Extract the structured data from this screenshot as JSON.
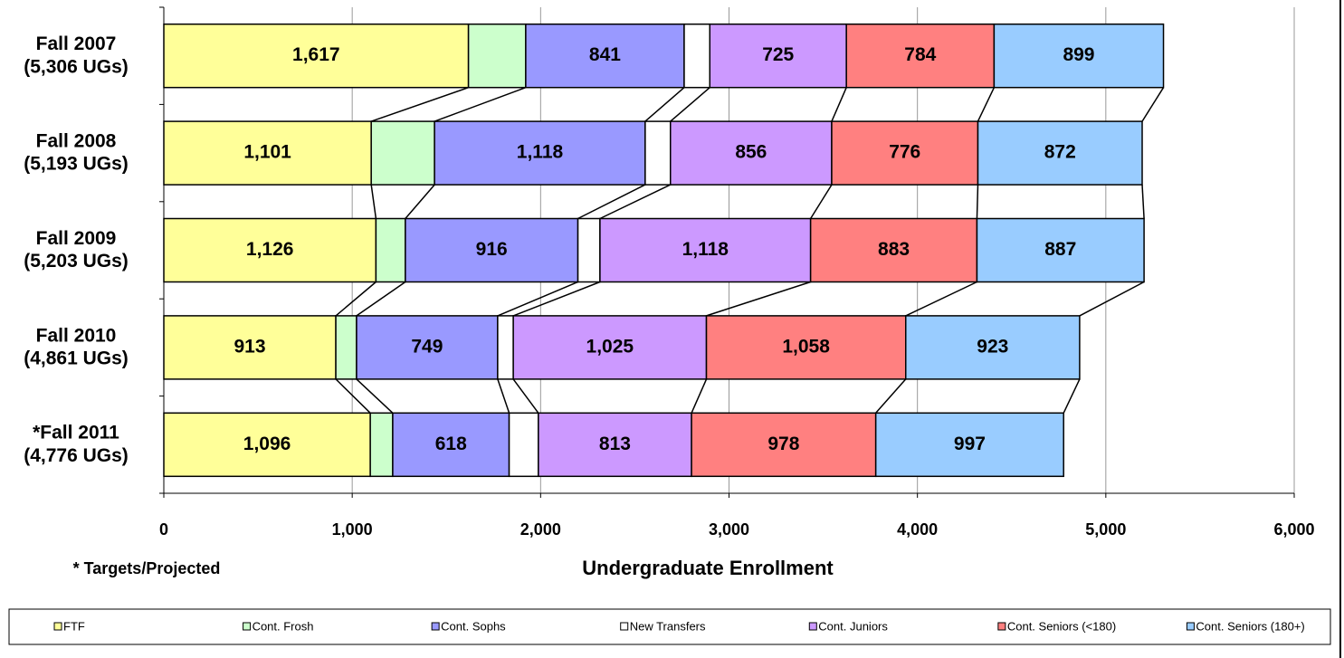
{
  "chart_data": {
    "type": "stacked_bar_horizontal",
    "categories": [
      [
        "Fall 2007",
        "(5,306 UGs)"
      ],
      [
        "Fall 2008",
        "(5,193 UGs)"
      ],
      [
        "Fall 2009",
        "(5,203 UGs)"
      ],
      [
        "Fall 2010",
        "(4,861 UGs)"
      ],
      [
        "*Fall 2011",
        "(4,776 UGs)"
      ]
    ],
    "series": [
      {
        "name": "FTF",
        "color": "#ffff99",
        "values": [
          1617,
          1101,
          1126,
          913,
          1096
        ],
        "value_labels": [
          "1,617",
          "1,101",
          "1,126",
          "913",
          "1,096"
        ]
      },
      {
        "name": "Cont. Frosh",
        "color": "#ccffcc",
        "values": [
          304,
          336,
          156,
          110,
          119
        ]
      },
      {
        "name": "Cont. Sophs",
        "color": "#9999ff",
        "values": [
          841,
          1118,
          916,
          749,
          618
        ],
        "value_labels": [
          "841",
          "1,118",
          "916",
          "749",
          "618"
        ]
      },
      {
        "name": "New Transfers",
        "color": "#ffffff",
        "values": [
          136,
          134,
          117,
          83,
          155
        ]
      },
      {
        "name": "Cont. Juniors",
        "color": "#cc99ff",
        "values": [
          725,
          856,
          1118,
          1025,
          813
        ],
        "value_labels": [
          "725",
          "856",
          "1,118",
          "1,025",
          "813"
        ]
      },
      {
        "name": "Cont. Seniors (<180)",
        "color": "#ff8080",
        "values": [
          784,
          776,
          883,
          1058,
          978
        ],
        "value_labels": [
          "784",
          "776",
          "883",
          "1,058",
          "978"
        ]
      },
      {
        "name": "Cont. Seniors (180+)",
        "color": "#99ccff",
        "values": [
          899,
          872,
          887,
          923,
          997
        ],
        "value_labels": [
          "899",
          "872",
          "887",
          "923",
          "997"
        ]
      }
    ],
    "xlim": [
      0,
      6000
    ],
    "xticks": [
      0,
      {
        "value": 1000,
        "label": "1,000"
      },
      {
        "value": 2000,
        "label": "2,000"
      },
      {
        "value": 3000,
        "label": "3,000"
      },
      {
        "value": 4000,
        "label": "4,000"
      },
      {
        "value": 5000,
        "label": "5,000"
      },
      {
        "value": 6000,
        "label": "6,000"
      }
    ],
    "xlabel": "Undergraduate Enrollment",
    "annotation": "* Targets/Projected",
    "grid": true,
    "legend": "bottom"
  }
}
